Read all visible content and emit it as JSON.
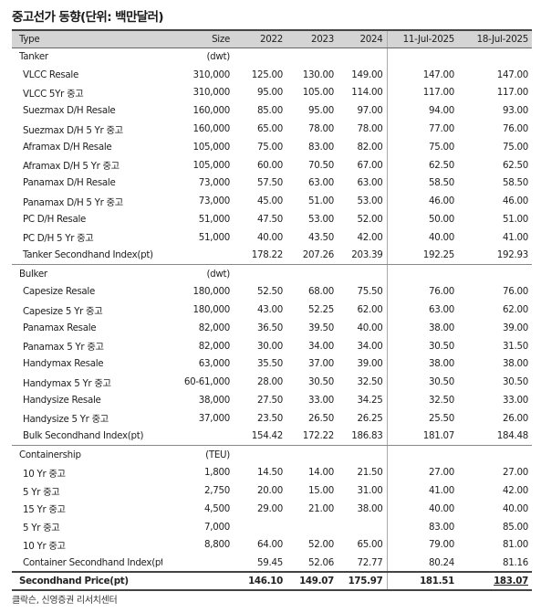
{
  "title": "중고선가 동향(단위: 백만달러)",
  "columns": {
    "type": "Type",
    "size": "Size",
    "y2022": "2022",
    "y2023": "2023",
    "y2024": "2024",
    "d1": "11-Jul-2025",
    "d2": "18-Jul-2025"
  },
  "rows": [
    {
      "kind": "sec",
      "type": "Tanker",
      "size": "(dwt)",
      "y2022": "",
      "y2023": "",
      "y2024": "",
      "d1": "",
      "d2": ""
    },
    {
      "kind": "item",
      "type": "VLCC Resale",
      "size": "310,000",
      "y2022": "125.00",
      "y2023": "130.00",
      "y2024": "149.00",
      "d1": "147.00",
      "d2": "147.00"
    },
    {
      "kind": "item",
      "type": "VLCC 5Yr 중고",
      "size": "310,000",
      "y2022": "95.00",
      "y2023": "105.00",
      "y2024": "114.00",
      "d1": "117.00",
      "d2": "117.00"
    },
    {
      "kind": "item",
      "type": "Suezmax D/H Resale",
      "size": "160,000",
      "y2022": "85.00",
      "y2023": "95.00",
      "y2024": "97.00",
      "d1": "94.00",
      "d2": "93.00"
    },
    {
      "kind": "item",
      "type": "Suezmax D/H 5 Yr 중고",
      "size": "160,000",
      "y2022": "65.00",
      "y2023": "78.00",
      "y2024": "78.00",
      "d1": "77.00",
      "d2": "76.00"
    },
    {
      "kind": "item",
      "type": "Aframax D/H Resale",
      "size": "105,000",
      "y2022": "75.00",
      "y2023": "83.00",
      "y2024": "82.00",
      "d1": "75.00",
      "d2": "75.00"
    },
    {
      "kind": "item",
      "type": "Aframax D/H 5 Yr 중고",
      "size": "105,000",
      "y2022": "60.00",
      "y2023": "70.50",
      "y2024": "67.00",
      "d1": "62.50",
      "d2": "62.50"
    },
    {
      "kind": "item",
      "type": "Panamax D/H Resale",
      "size": "73,000",
      "y2022": "57.50",
      "y2023": "63.00",
      "y2024": "63.00",
      "d1": "58.50",
      "d2": "58.50"
    },
    {
      "kind": "item",
      "type": "Panamax D/H 5 Yr 중고",
      "size": "73,000",
      "y2022": "45.00",
      "y2023": "51.00",
      "y2024": "53.00",
      "d1": "46.00",
      "d2": "46.00"
    },
    {
      "kind": "item",
      "type": "PC D/H Resale",
      "size": "51,000",
      "y2022": "47.50",
      "y2023": "53.00",
      "y2024": "52.00",
      "d1": "50.00",
      "d2": "51.00"
    },
    {
      "kind": "item",
      "type": "PC D/H 5 Yr 중고",
      "size": "51,000",
      "y2022": "40.00",
      "y2023": "43.50",
      "y2024": "42.00",
      "d1": "40.00",
      "d2": "41.00"
    },
    {
      "kind": "idx",
      "type": "Tanker Secondhand Index(pt)",
      "size": "",
      "y2022": "178.22",
      "y2023": "207.26",
      "y2024": "203.39",
      "d1": "192.25",
      "d2": "192.93"
    },
    {
      "kind": "sec",
      "type": "Bulker",
      "size": "(dwt)",
      "y2022": "",
      "y2023": "",
      "y2024": "",
      "d1": "",
      "d2": ""
    },
    {
      "kind": "item",
      "type": "Capesize Resale",
      "size": "180,000",
      "y2022": "52.50",
      "y2023": "68.00",
      "y2024": "75.50",
      "d1": "76.00",
      "d2": "76.00"
    },
    {
      "kind": "item",
      "type": "Capesize 5 Yr 중고",
      "size": "180,000",
      "y2022": "43.00",
      "y2023": "52.25",
      "y2024": "62.00",
      "d1": "63.00",
      "d2": "62.00"
    },
    {
      "kind": "item",
      "type": "Panamax Resale",
      "size": "82,000",
      "y2022": "36.50",
      "y2023": "39.50",
      "y2024": "40.00",
      "d1": "38.00",
      "d2": "39.00"
    },
    {
      "kind": "item",
      "type": "Panamax 5 Yr 중고",
      "size": "82,000",
      "y2022": "30.00",
      "y2023": "34.00",
      "y2024": "34.00",
      "d1": "30.50",
      "d2": "31.50"
    },
    {
      "kind": "item",
      "type": "Handymax Resale",
      "size": "63,000",
      "y2022": "35.50",
      "y2023": "37.00",
      "y2024": "39.00",
      "d1": "38.00",
      "d2": "38.00"
    },
    {
      "kind": "item",
      "type": "Handymax 5 Yr 중고",
      "size": "60-61,000",
      "y2022": "28.00",
      "y2023": "30.50",
      "y2024": "32.50",
      "d1": "30.50",
      "d2": "30.50"
    },
    {
      "kind": "item",
      "type": "Handysize Resale",
      "size": "38,000",
      "y2022": "27.50",
      "y2023": "33.00",
      "y2024": "34.25",
      "d1": "32.50",
      "d2": "33.00"
    },
    {
      "kind": "item",
      "type": "Handysize 5 Yr 중고",
      "size": "37,000",
      "y2022": "23.50",
      "y2023": "26.50",
      "y2024": "26.25",
      "d1": "25.50",
      "d2": "26.00"
    },
    {
      "kind": "idx",
      "type": "Bulk Secondhand Index(pt)",
      "size": "",
      "y2022": "154.42",
      "y2023": "172.22",
      "y2024": "186.83",
      "d1": "181.07",
      "d2": "184.48"
    },
    {
      "kind": "sec",
      "type": "Containership",
      "size": "(TEU)",
      "y2022": "",
      "y2023": "",
      "y2024": "",
      "d1": "",
      "d2": ""
    },
    {
      "kind": "item",
      "type": "10 Yr 중고",
      "size": "1,800",
      "y2022": "14.50",
      "y2023": "14.00",
      "y2024": "21.50",
      "d1": "27.00",
      "d2": "27.00"
    },
    {
      "kind": "item",
      "type": "5 Yr 중고",
      "size": "2,750",
      "y2022": "20.00",
      "y2023": "15.00",
      "y2024": "31.00",
      "d1": "41.00",
      "d2": "42.00"
    },
    {
      "kind": "item",
      "type": "15 Yr 중고",
      "size": "4,500",
      "y2022": "29.00",
      "y2023": "21.00",
      "y2024": "38.00",
      "d1": "40.00",
      "d2": "40.00"
    },
    {
      "kind": "item",
      "type": "5 Yr 중고",
      "size": "7,000",
      "y2022": "",
      "y2023": "",
      "y2024": "",
      "d1": "83.00",
      "d2": "85.00"
    },
    {
      "kind": "item",
      "type": "10 Yr 중고",
      "size": "8,800",
      "y2022": "64.00",
      "y2023": "52.00",
      "y2024": "65.00",
      "d1": "79.00",
      "d2": "81.00"
    },
    {
      "kind": "item",
      "type": "Container Secondhand Index(pt)",
      "size": "",
      "y2022": "59.45",
      "y2023": "52.06",
      "y2024": "72.77",
      "d1": "80.24",
      "d2": "81.16"
    },
    {
      "kind": "total",
      "type": "Secondhand Price(pt)",
      "size": "",
      "y2022": "146.10",
      "y2023": "149.07",
      "y2024": "175.97",
      "d1": "181.51",
      "d2": "183.07"
    }
  ],
  "source": "클락슨, 신영증권 리서치센터"
}
